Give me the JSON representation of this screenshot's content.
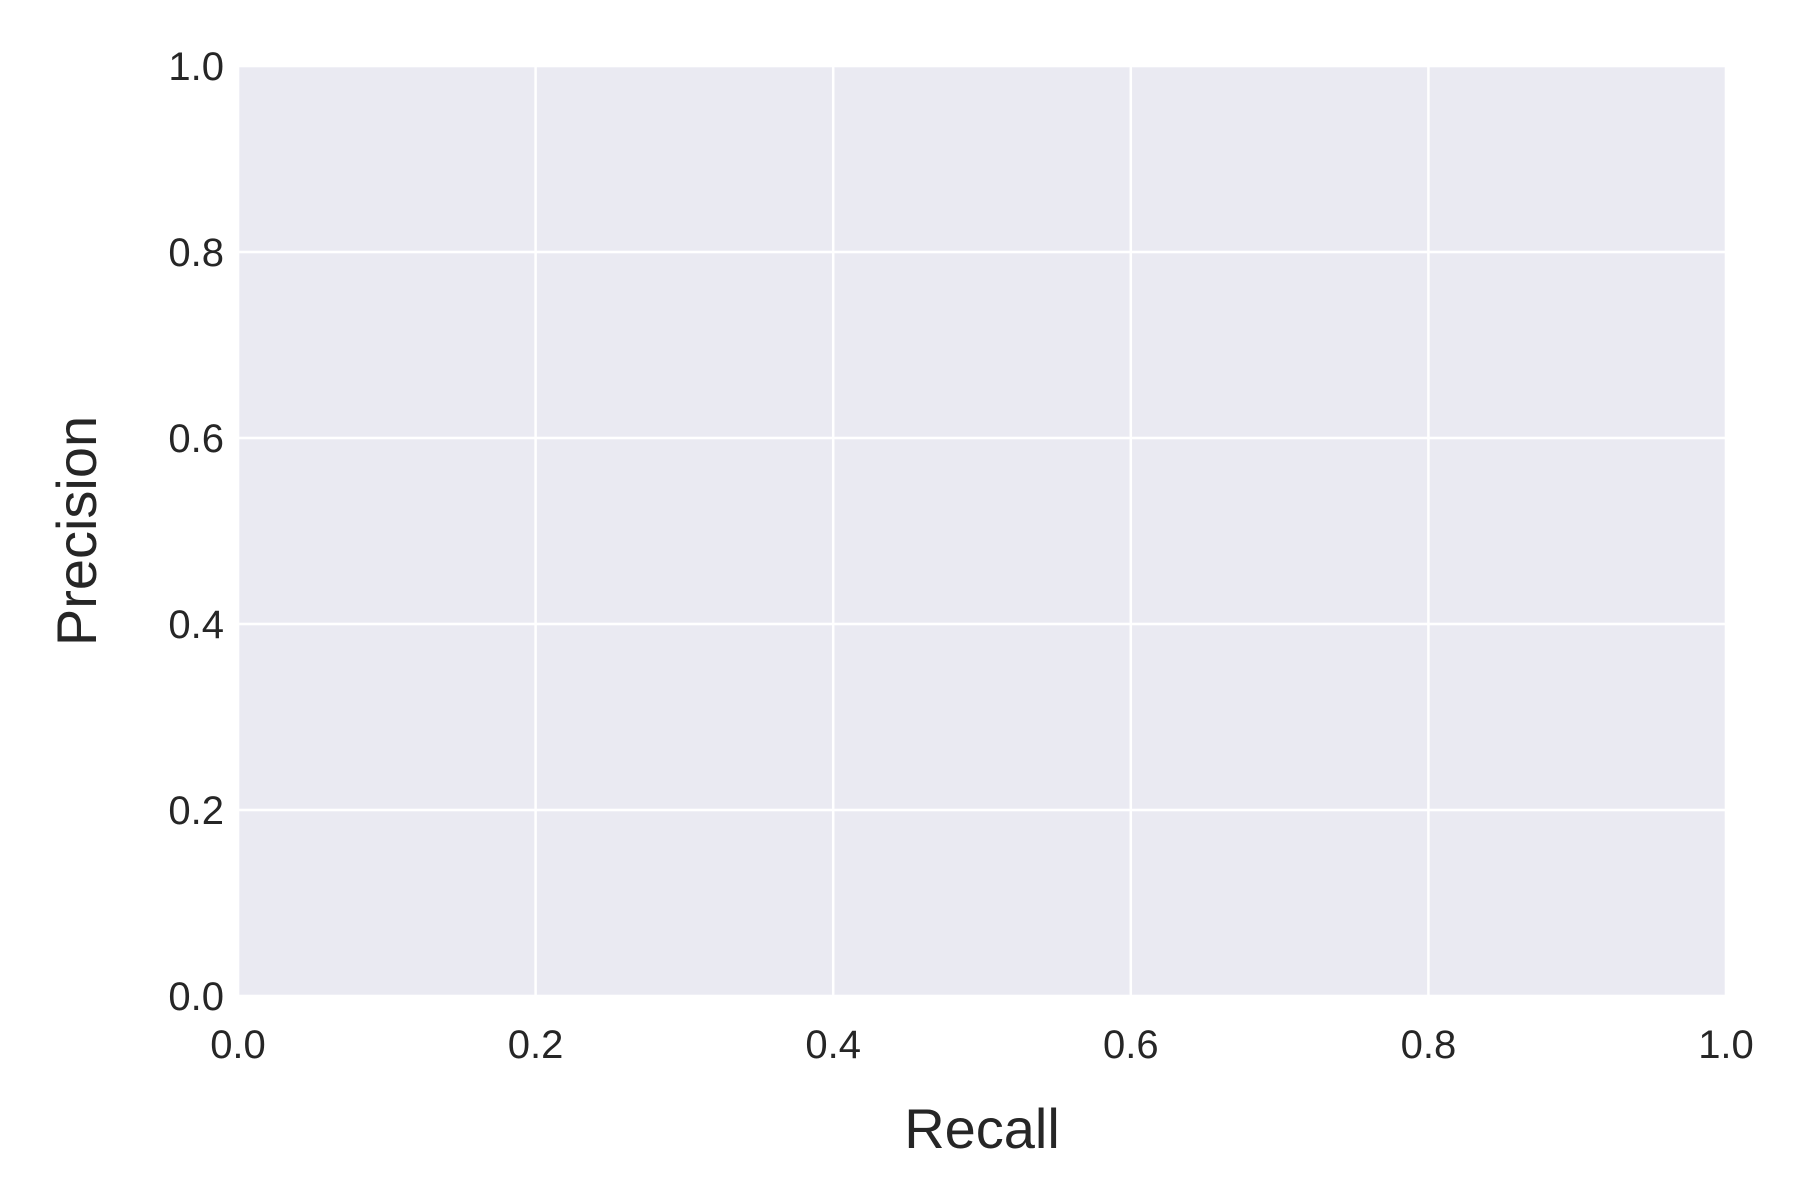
{
  "chart_data": {
    "type": "line",
    "title": "",
    "xlabel": "Recall",
    "ylabel": "Precision",
    "xlim": [
      0.0,
      1.0
    ],
    "ylim": [
      0.0,
      1.0
    ],
    "xticks": [
      0.0,
      0.2,
      0.4,
      0.6,
      0.8,
      1.0
    ],
    "yticks": [
      0.0,
      0.2,
      0.4,
      0.6,
      0.8,
      1.0
    ],
    "x_tick_labels": [
      "0.0",
      "0.2",
      "0.4",
      "0.6",
      "0.8",
      "1.0"
    ],
    "y_tick_labels": [
      "0.0",
      "0.2",
      "0.4",
      "0.6",
      "0.8",
      "1.0"
    ],
    "grid": true,
    "legend": "none",
    "series": [],
    "colors": {
      "plot_background": "#eaeaf2",
      "grid": "#ffffff",
      "text": "#262626"
    }
  }
}
